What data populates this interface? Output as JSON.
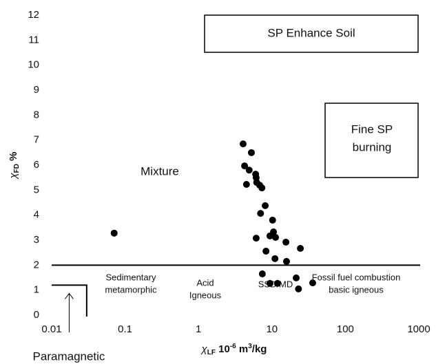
{
  "chart_data": {
    "type": "scatter",
    "x_label": [
      "χ",
      "LF",
      " 10",
      "-6",
      " m",
      "3",
      "/kg"
    ],
    "y_label": [
      "χ",
      "FD",
      " %"
    ],
    "xscale": "log",
    "xlim": [
      0.01,
      1000
    ],
    "xticks": [
      0.01,
      0.1,
      1,
      10,
      100,
      1000
    ],
    "ylim": [
      0,
      12
    ],
    "yticks": [
      0,
      1,
      2,
      3,
      4,
      5,
      6,
      7,
      8,
      9,
      10,
      11,
      12
    ],
    "color": "#000000",
    "reference_line_y": 2,
    "paramagnetic_box": {
      "x": 0.03,
      "y": 1.2
    },
    "x": [
      0.071,
      4.05,
      5.25,
      4.24,
      4.9,
      6.0,
      6.1,
      4.5,
      6.2,
      6.8,
      7.3,
      8.1,
      7.0,
      10.2,
      10.5,
      9.4,
      11.2,
      6.1,
      15.5,
      24.4,
      8.3,
      11.0,
      15.8,
      7.4,
      21.4,
      9.4,
      11.9,
      35.9,
      23
    ],
    "values": [
      3.28,
      6.85,
      6.5,
      5.97,
      5.8,
      5.64,
      5.5,
      5.23,
      5.31,
      5.2,
      5.09,
      4.38,
      4.07,
      3.8,
      3.33,
      3.17,
      3.11,
      3.08,
      2.92,
      2.67,
      2.56,
      2.26,
      2.15,
      1.65,
      1.49,
      1.27,
      1.27,
      1.29,
      1.05
    ],
    "annotations": [
      {
        "lines": [
          "SP Enhance Soil"
        ]
      },
      {
        "lines": [
          "Fine SP",
          "burning"
        ]
      },
      {
        "lines": [
          "Mixture"
        ]
      },
      {
        "lines": [
          "Sedimentary",
          "metamorphic"
        ]
      },
      {
        "lines": [
          "Acid",
          "Igneous"
        ]
      },
      {
        "lines": [
          "SSD/MD"
        ]
      },
      {
        "lines": [
          "Fossil fuel combustion",
          "basic igneous"
        ]
      },
      {
        "lines": [
          "Paramagnetic"
        ]
      }
    ]
  }
}
